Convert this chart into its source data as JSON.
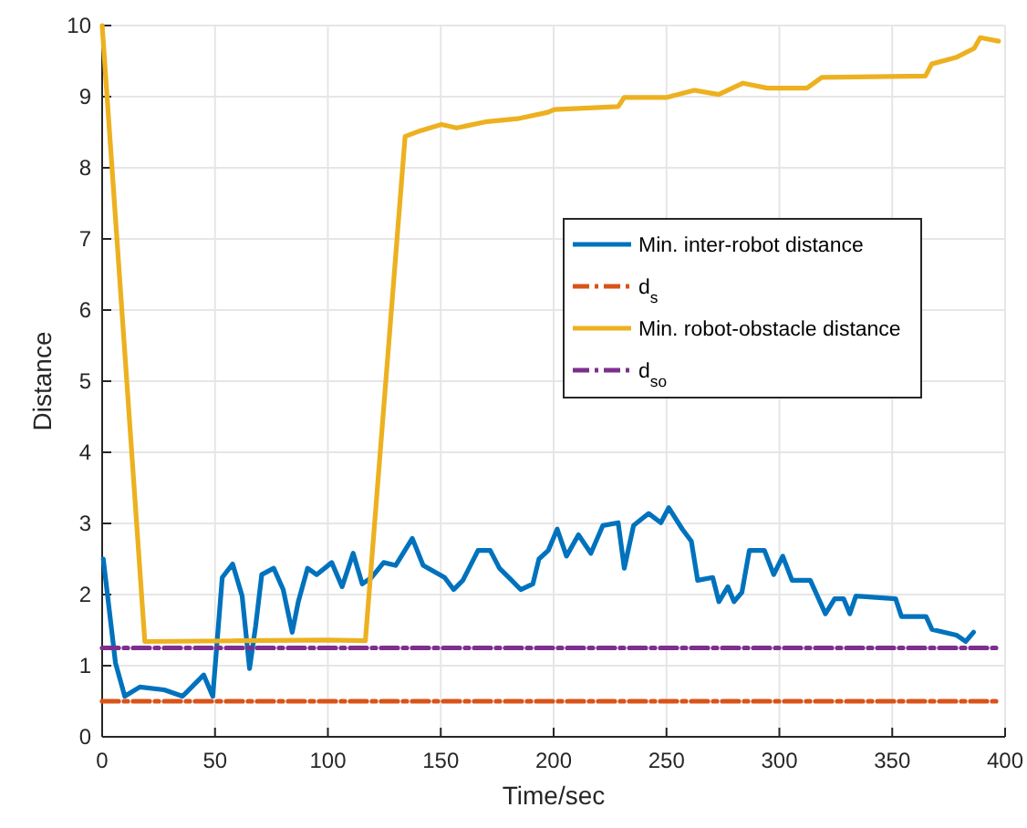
{
  "chart_data": {
    "type": "line",
    "xlabel": "Time/sec",
    "ylabel": "Distance",
    "xlim": [
      0,
      400
    ],
    "ylim": [
      0,
      10
    ],
    "xticks": [
      0,
      50,
      100,
      150,
      200,
      250,
      300,
      350,
      400
    ],
    "yticks": [
      0,
      1,
      2,
      3,
      4,
      5,
      6,
      7,
      8,
      9,
      10
    ],
    "grid": true,
    "legend": "right",
    "marker": "none",
    "series": [
      {
        "name": "Min. inter-robot distance",
        "color": "#0072bd",
        "line_style": "solid",
        "x": [
          0.5,
          5.9,
          10,
          16.7,
          27.5,
          35.6,
          45,
          49,
          53.2,
          57.8,
          62,
          65.3,
          68,
          70.7,
          76,
          80.2,
          84.2,
          86.9,
          91,
          95,
          101.7,
          106.3,
          111.2,
          115.2,
          119.3,
          124.7,
          130,
          137.4,
          142.2,
          151.7,
          155.7,
          159.8,
          166.5,
          171.9,
          176,
          181.4,
          185.4,
          190.8,
          193.5,
          197.6,
          201.6,
          205.7,
          211,
          216.5,
          221.8,
          228.6,
          231.3,
          235.4,
          242.1,
          247.5,
          251,
          257,
          261,
          263.8,
          270.5,
          273.2,
          277.2,
          279.9,
          283.4,
          286.7,
          293.4,
          297.5,
          301.5,
          305.6,
          313.7,
          320.4,
          324.5,
          328.5,
          331.2,
          333.9,
          351.5,
          354.1,
          365,
          367.6,
          378.4,
          382.5,
          386
        ],
        "values": [
          2.5,
          1.04,
          0.57,
          0.7,
          0.66,
          0.57,
          0.87,
          0.57,
          2.24,
          2.43,
          1.98,
          0.96,
          1.56,
          2.28,
          2.37,
          2.07,
          1.47,
          1.9,
          2.37,
          2.28,
          2.45,
          2.11,
          2.58,
          2.15,
          2.24,
          2.45,
          2.41,
          2.79,
          2.41,
          2.24,
          2.07,
          2.2,
          2.62,
          2.62,
          2.37,
          2.2,
          2.07,
          2.15,
          2.5,
          2.62,
          2.92,
          2.54,
          2.84,
          2.58,
          2.97,
          3.01,
          2.37,
          2.97,
          3.14,
          3.01,
          3.22,
          2.92,
          2.75,
          2.2,
          2.24,
          1.9,
          2.11,
          1.9,
          2.03,
          2.62,
          2.62,
          2.28,
          2.54,
          2.2,
          2.2,
          1.73,
          1.94,
          1.94,
          1.73,
          1.98,
          1.94,
          1.69,
          1.69,
          1.51,
          1.43,
          1.34,
          1.47
        ]
      },
      {
        "name": "d$_{s}$",
        "color": "#d95319",
        "line_style": "dashed",
        "x": [
          0,
          397
        ],
        "values": [
          0.5,
          0.5
        ]
      },
      {
        "name": "Min. robot-obstacle distance",
        "color": "#edb120",
        "line_style": "solid",
        "x": [
          0,
          18.9,
          60,
          100,
          116.6,
          134.2,
          140.9,
          150.3,
          157,
          170.6,
          184,
          197.5,
          200.3,
          228.6,
          231.3,
          250.2,
          262.3,
          273.1,
          283.9,
          294.7,
          312.2,
          318.8,
          364.7,
          367.5,
          378.2,
          386.3,
          389,
          397.1
        ],
        "values": [
          10,
          1.34,
          1.35,
          1.36,
          1.35,
          8.44,
          8.52,
          8.61,
          8.56,
          8.65,
          8.69,
          8.78,
          8.82,
          8.86,
          8.99,
          8.99,
          9.09,
          9.03,
          9.19,
          9.12,
          9.12,
          9.27,
          9.29,
          9.46,
          9.55,
          9.68,
          9.83,
          9.78
        ]
      },
      {
        "name": "d$_{so}$",
        "color": "#7e2f8e",
        "line_style": "dashed",
        "x": [
          0,
          397
        ],
        "values": [
          1.25,
          1.25
        ]
      }
    ]
  }
}
